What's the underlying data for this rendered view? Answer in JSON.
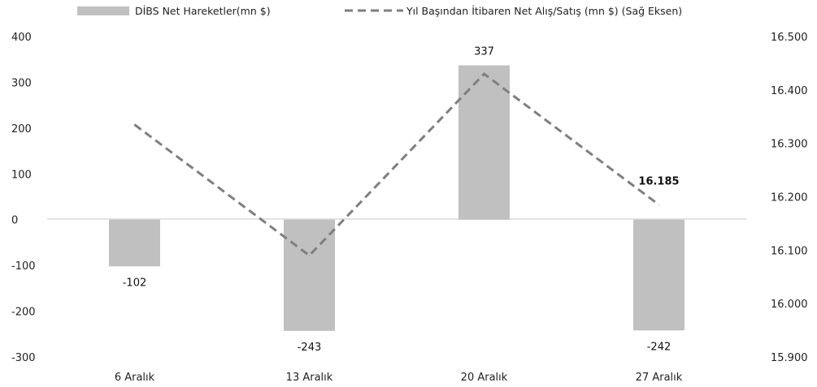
{
  "chart_data": {
    "type": "bar",
    "categories": [
      "6 Aralık",
      "13 Aralık",
      "20 Aralık",
      "27 Aralık"
    ],
    "series": [
      {
        "name": "DİBS Net Hareketler(mn $)",
        "type": "bar",
        "axis": "left",
        "values": [
          -102,
          -243,
          337,
          -242
        ],
        "color": "#c0c0c0"
      },
      {
        "name": "Yıl Başından İtibaren Net Alış/Satış (mn $) (Sağ Eksen)",
        "type": "line",
        "axis": "right",
        "style": "dashed",
        "values": [
          16335,
          16090,
          16430,
          16185
        ],
        "color": "#7f7f7f"
      }
    ],
    "bar_labels": [
      "-102",
      "-243",
      "337",
      "-242"
    ],
    "line_label": "16.185",
    "yleft": {
      "ticks": [
        "400",
        "300",
        "200",
        "100",
        "0",
        "-100",
        "-200",
        "-300"
      ],
      "lim": [
        -300,
        400
      ]
    },
    "yright": {
      "ticks": [
        "16.500",
        "16.400",
        "16.300",
        "16.200",
        "16.100",
        "16.000",
        "15.900"
      ],
      "lim": [
        15900,
        16500
      ]
    },
    "legend_position": "top"
  }
}
